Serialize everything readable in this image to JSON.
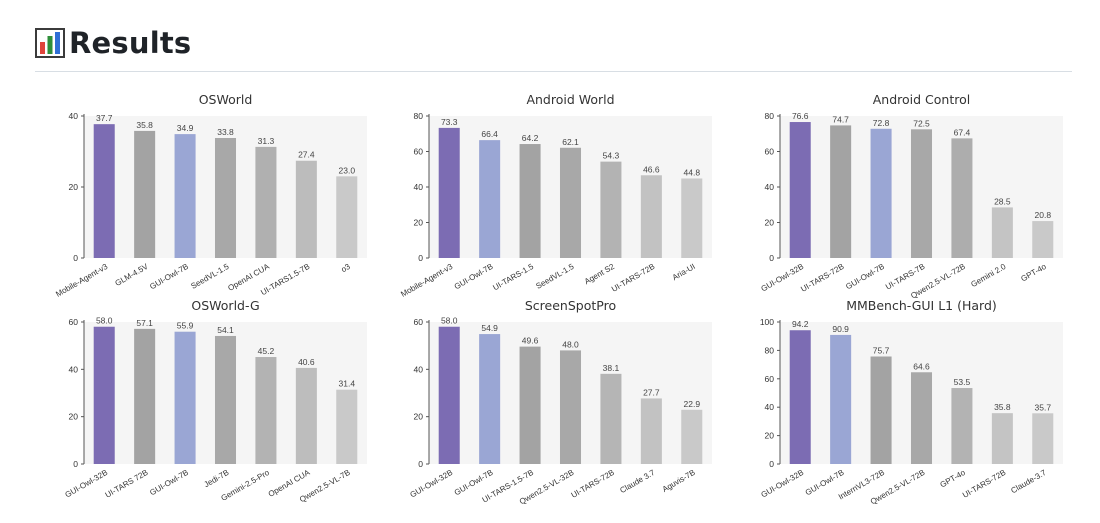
{
  "section": {
    "title": "Results",
    "icon": "bar-chart-icon"
  },
  "colors": {
    "highlight": "#7c6cb3",
    "secondary": "#9aa6d4",
    "plot_bg": "#f5f5f5",
    "gray_dark": "#a3a3a3",
    "gray_mid": "#b6b6b6",
    "gray_light": "#c9c9c9"
  },
  "chart_data": [
    {
      "type": "bar",
      "title": "OSWorld",
      "categories": [
        "Mobile-Agent-v3",
        "GLM-4.5V",
        "GUI-Owl-7B",
        "SeedVL-1.5",
        "OpenAI CUA",
        "UI-TARS1.5-7B",
        "o3"
      ],
      "values": [
        37.7,
        35.8,
        34.9,
        33.8,
        31.3,
        27.4,
        23.0
      ],
      "labels": [
        "37.7",
        "35.8",
        "34.9",
        "33.8",
        "31.3",
        "27.4",
        "23.0"
      ],
      "colors": [
        "#7c6cb3",
        "#a3a3a3",
        "#9aa6d4",
        "#a8a8a8",
        "#b0b0b0",
        "#bcbcbc",
        "#c9c9c9"
      ],
      "ylim": [
        0,
        40
      ],
      "yticks": [
        "0",
        "20",
        "40"
      ],
      "ytick_values": [
        0,
        20,
        40
      ]
    },
    {
      "type": "bar",
      "title": "Android World",
      "categories": [
        "Mobile-Agent-v3",
        "GUI-Owl-7B",
        "UI-TARS-1.5",
        "SeedVL-1.5",
        "Agent S2",
        "UI-TARS-72B",
        "Aria-UI"
      ],
      "values": [
        73.3,
        66.4,
        64.2,
        62.1,
        54.3,
        46.6,
        44.8
      ],
      "labels": [
        "73.3",
        "66.4",
        "64.2",
        "62.1",
        "54.3",
        "46.6",
        "44.8"
      ],
      "colors": [
        "#7c6cb3",
        "#9aa6d4",
        "#a3a3a3",
        "#a8a8a8",
        "#b3b3b3",
        "#c2c2c2",
        "#c9c9c9"
      ],
      "ylim": [
        0,
        80
      ],
      "yticks": [
        "0",
        "20",
        "40",
        "60",
        "80"
      ],
      "ytick_values": [
        0,
        20,
        40,
        60,
        80
      ]
    },
    {
      "type": "bar",
      "title": "Android Control",
      "categories": [
        "GUI-Owl-32B",
        "UI-TARS-72B",
        "GUI-Owl-7B",
        "UI-TARS-7B",
        "Qwen2.5-VL-72B",
        "Gemini 2.0",
        "GPT-4o"
      ],
      "values": [
        76.6,
        74.7,
        72.8,
        72.5,
        67.4,
        28.5,
        20.8
      ],
      "labels": [
        "76.6",
        "74.7",
        "72.8",
        "72.5",
        "67.4",
        "28.5",
        "20.8"
      ],
      "colors": [
        "#7c6cb3",
        "#a3a3a3",
        "#9aa6d4",
        "#a8a8a8",
        "#adadad",
        "#c4c4c4",
        "#c9c9c9"
      ],
      "ylim": [
        0,
        80
      ],
      "yticks": [
        "0",
        "20",
        "40",
        "60",
        "80"
      ],
      "ytick_values": [
        0,
        20,
        40,
        60,
        80
      ]
    },
    {
      "type": "bar",
      "title": "OSWorld-G",
      "categories": [
        "GUI-Owl-32B",
        "UI-TARS 72B",
        "GUI-Owl-7B",
        "Jedi-7B",
        "Gemini-2.5-Pro",
        "OpenAI CUA",
        "Qwen2.5-VL-7B"
      ],
      "values": [
        58.0,
        57.1,
        55.9,
        54.1,
        45.2,
        40.6,
        31.4
      ],
      "labels": [
        "58.0",
        "57.1",
        "55.9",
        "54.1",
        "45.2",
        "40.6",
        "31.4"
      ],
      "colors": [
        "#7c6cb3",
        "#a3a3a3",
        "#9aa6d4",
        "#a8a8a8",
        "#b3b3b3",
        "#bdbdbd",
        "#c9c9c9"
      ],
      "ylim": [
        0,
        60
      ],
      "yticks": [
        "0",
        "20",
        "40",
        "60"
      ],
      "ytick_values": [
        0,
        20,
        40,
        60
      ]
    },
    {
      "type": "bar",
      "title": "ScreenSpotPro",
      "categories": [
        "GUI-Owl-32B",
        "GUI-Owl-7B",
        "UI-TARS-1.5-7B",
        "Qwen2.5-VL-32B",
        "UI-TARS-72B",
        "Claude 3.7",
        "Aguvis-7B"
      ],
      "values": [
        58.0,
        54.9,
        49.6,
        48.0,
        38.1,
        27.7,
        22.9
      ],
      "labels": [
        "58.0",
        "54.9",
        "49.6",
        "48.0",
        "38.1",
        "27.7",
        "22.9"
      ],
      "colors": [
        "#7c6cb3",
        "#9aa6d4",
        "#a3a3a3",
        "#a8a8a8",
        "#b5b5b5",
        "#c2c2c2",
        "#c9c9c9"
      ],
      "ylim": [
        0,
        60
      ],
      "yticks": [
        "0",
        "20",
        "40",
        "60"
      ],
      "ytick_values": [
        0,
        20,
        40,
        60
      ]
    },
    {
      "type": "bar",
      "title": "MMBench-GUI L1 (Hard)",
      "categories": [
        "GUI-Owl-32B",
        "GUI-Owl-7B",
        "InternVL3-72B",
        "Qwen2.5-VL-72B",
        "GPT-4o",
        "UI-TARS-72B",
        "Claude-3.7"
      ],
      "values": [
        94.2,
        90.9,
        75.7,
        64.6,
        53.5,
        35.8,
        35.7
      ],
      "labels": [
        "94.2",
        "90.9",
        "75.7",
        "64.6",
        "53.5",
        "35.8",
        "35.7"
      ],
      "colors": [
        "#7c6cb3",
        "#9aa6d4",
        "#a3a3a3",
        "#a8a8a8",
        "#b3b3b3",
        "#c4c4c4",
        "#c9c9c9"
      ],
      "ylim": [
        0,
        100
      ],
      "yticks": [
        "0",
        "20",
        "40",
        "60",
        "80",
        "100"
      ],
      "ytick_values": [
        0,
        20,
        40,
        60,
        80,
        100
      ]
    }
  ]
}
